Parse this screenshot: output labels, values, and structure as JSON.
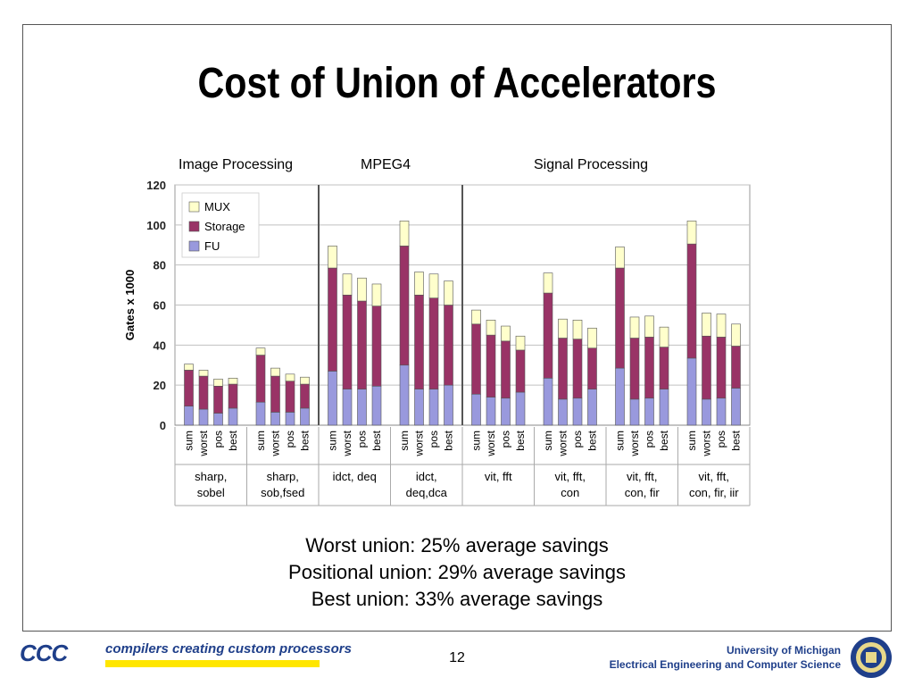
{
  "slide": {
    "title": "Cost of Union of Accelerators",
    "summary": [
      "Worst union: 25% average savings",
      "Positional union: 29% average savings",
      "Best union: 33% average savings"
    ],
    "page_number": "12",
    "footer": {
      "logo_text": "CCC",
      "tagline": "compilers creating custom processors",
      "university": "University of Michigan",
      "department": "Electrical Engineering and Computer Science"
    }
  },
  "chart_data": {
    "type": "bar",
    "stacked": true,
    "group_labels": [
      "Image Processing",
      "MPEG4",
      "Signal Processing"
    ],
    "ylabel": "Gates x 1000",
    "ylim": [
      0,
      120
    ],
    "yticks": [
      0,
      20,
      40,
      60,
      80,
      100,
      120
    ],
    "legend": [
      "MUX",
      "Storage",
      "FU"
    ],
    "legend_position": "top-left",
    "colors": {
      "FU": "#9999dd",
      "Storage": "#993366",
      "MUX": "#ffffcc",
      "grid": "#c0c0c0",
      "divider": "#555555"
    },
    "groups": [
      {
        "label": "sharp, sobel",
        "lines": [
          "sharp,",
          "sobel"
        ],
        "categories": [
          "sum",
          "worst",
          "pos",
          "best"
        ],
        "FU": [
          9.5,
          8,
          6,
          8.5
        ],
        "Storage": [
          18,
          16.5,
          13.5,
          12
        ],
        "MUX": [
          3,
          3,
          3.5,
          3
        ]
      },
      {
        "label": "sharp, sob,fsed",
        "lines": [
          "sharp,",
          "sob,fsed"
        ],
        "categories": [
          "sum",
          "worst",
          "pos",
          "best"
        ],
        "FU": [
          11.5,
          6.5,
          6.5,
          8.5
        ],
        "Storage": [
          23.5,
          18,
          15.5,
          12
        ],
        "MUX": [
          3.5,
          4,
          3.5,
          3.5
        ]
      },
      {
        "label": "idct, deq",
        "lines": [
          "idct,  deq"
        ],
        "categories": [
          "sum",
          "worst",
          "pos",
          "best"
        ],
        "FU": [
          27,
          18,
          18,
          19.5
        ],
        "Storage": [
          51.5,
          47,
          44,
          40
        ],
        "MUX": [
          11,
          10.5,
          11.5,
          11
        ]
      },
      {
        "label": "idct, deq,dca",
        "lines": [
          "idct,",
          "deq,dca"
        ],
        "categories": [
          "sum",
          "worst",
          "pos",
          "best"
        ],
        "FU": [
          30,
          18,
          18,
          20
        ],
        "Storage": [
          59.5,
          47,
          45.5,
          40
        ],
        "MUX": [
          12.5,
          11.5,
          12,
          12
        ]
      },
      {
        "label": "vit, fft",
        "lines": [
          "vit, fft"
        ],
        "categories": [
          "sum",
          "worst",
          "pos",
          "best"
        ],
        "FU": [
          15.5,
          14,
          13.5,
          16.5
        ],
        "Storage": [
          35,
          31,
          28.5,
          21
        ],
        "MUX": [
          7,
          7.5,
          7.5,
          7
        ]
      },
      {
        "label": "vit, fft, con",
        "lines": [
          "vit, fft,",
          "con"
        ],
        "categories": [
          "sum",
          "worst",
          "pos",
          "best"
        ],
        "FU": [
          23.5,
          13,
          13.5,
          18
        ],
        "Storage": [
          42.5,
          30.5,
          29.5,
          20.5
        ],
        "MUX": [
          10,
          9.5,
          9.5,
          10
        ]
      },
      {
        "label": "vit, fft, con, fir",
        "lines": [
          "vit, fft,",
          "con, fir"
        ],
        "categories": [
          "sum",
          "worst",
          "pos",
          "best"
        ],
        "FU": [
          28.5,
          13,
          13.5,
          18
        ],
        "Storage": [
          50,
          30.5,
          30.5,
          21
        ],
        "MUX": [
          10.5,
          10.5,
          10.5,
          10
        ]
      },
      {
        "label": "vit, fft, con, fir, iir",
        "lines": [
          "vit, fft,",
          "con, fir, iir"
        ],
        "categories": [
          "sum",
          "worst",
          "pos",
          "best"
        ],
        "FU": [
          33.5,
          13,
          13.5,
          18.5
        ],
        "Storage": [
          57,
          31.5,
          30.5,
          21
        ],
        "MUX": [
          11.5,
          11.5,
          11.5,
          11
        ]
      }
    ],
    "dividers_after_group": [
      2,
      4
    ],
    "grid": true
  }
}
